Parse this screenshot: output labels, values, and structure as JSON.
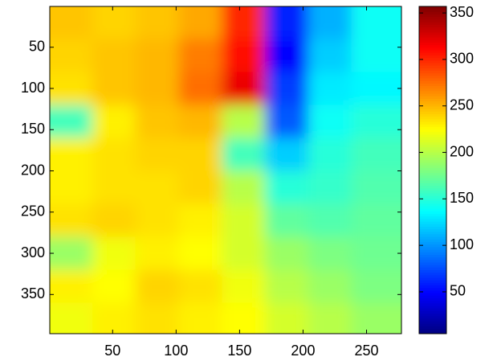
{
  "chart_data": {
    "type": "heatmap",
    "x": [
      17,
      51,
      85,
      119,
      153,
      187,
      221,
      255
    ],
    "y": [
      20,
      60,
      100,
      140,
      180,
      220,
      260,
      300,
      340,
      380
    ],
    "z": [
      [
        245,
        240,
        245,
        255,
        300,
        60,
        110,
        140
      ],
      [
        240,
        245,
        250,
        270,
        310,
        50,
        120,
        140
      ],
      [
        235,
        245,
        250,
        275,
        320,
        70,
        130,
        135
      ],
      [
        160,
        230,
        245,
        250,
        200,
        80,
        140,
        150
      ],
      [
        230,
        235,
        240,
        240,
        160,
        120,
        150,
        160
      ],
      [
        230,
        235,
        235,
        240,
        200,
        150,
        155,
        165
      ],
      [
        235,
        240,
        235,
        230,
        210,
        170,
        165,
        170
      ],
      [
        190,
        220,
        230,
        225,
        210,
        190,
        180,
        175
      ],
      [
        230,
        225,
        240,
        235,
        220,
        200,
        190,
        180
      ],
      [
        220,
        230,
        235,
        230,
        225,
        210,
        200,
        190
      ]
    ],
    "xlim": [
      0.5,
      277.5
    ],
    "ylim": [
      0.5,
      397.5
    ],
    "y_reversed": true,
    "xticks": [
      50,
      100,
      150,
      200,
      250
    ],
    "yticks": [
      50,
      100,
      150,
      200,
      250,
      300,
      350
    ],
    "colormap": "jet",
    "clim": [
      5,
      357
    ],
    "cticks": [
      50,
      100,
      150,
      200,
      250,
      300,
      350
    ]
  }
}
